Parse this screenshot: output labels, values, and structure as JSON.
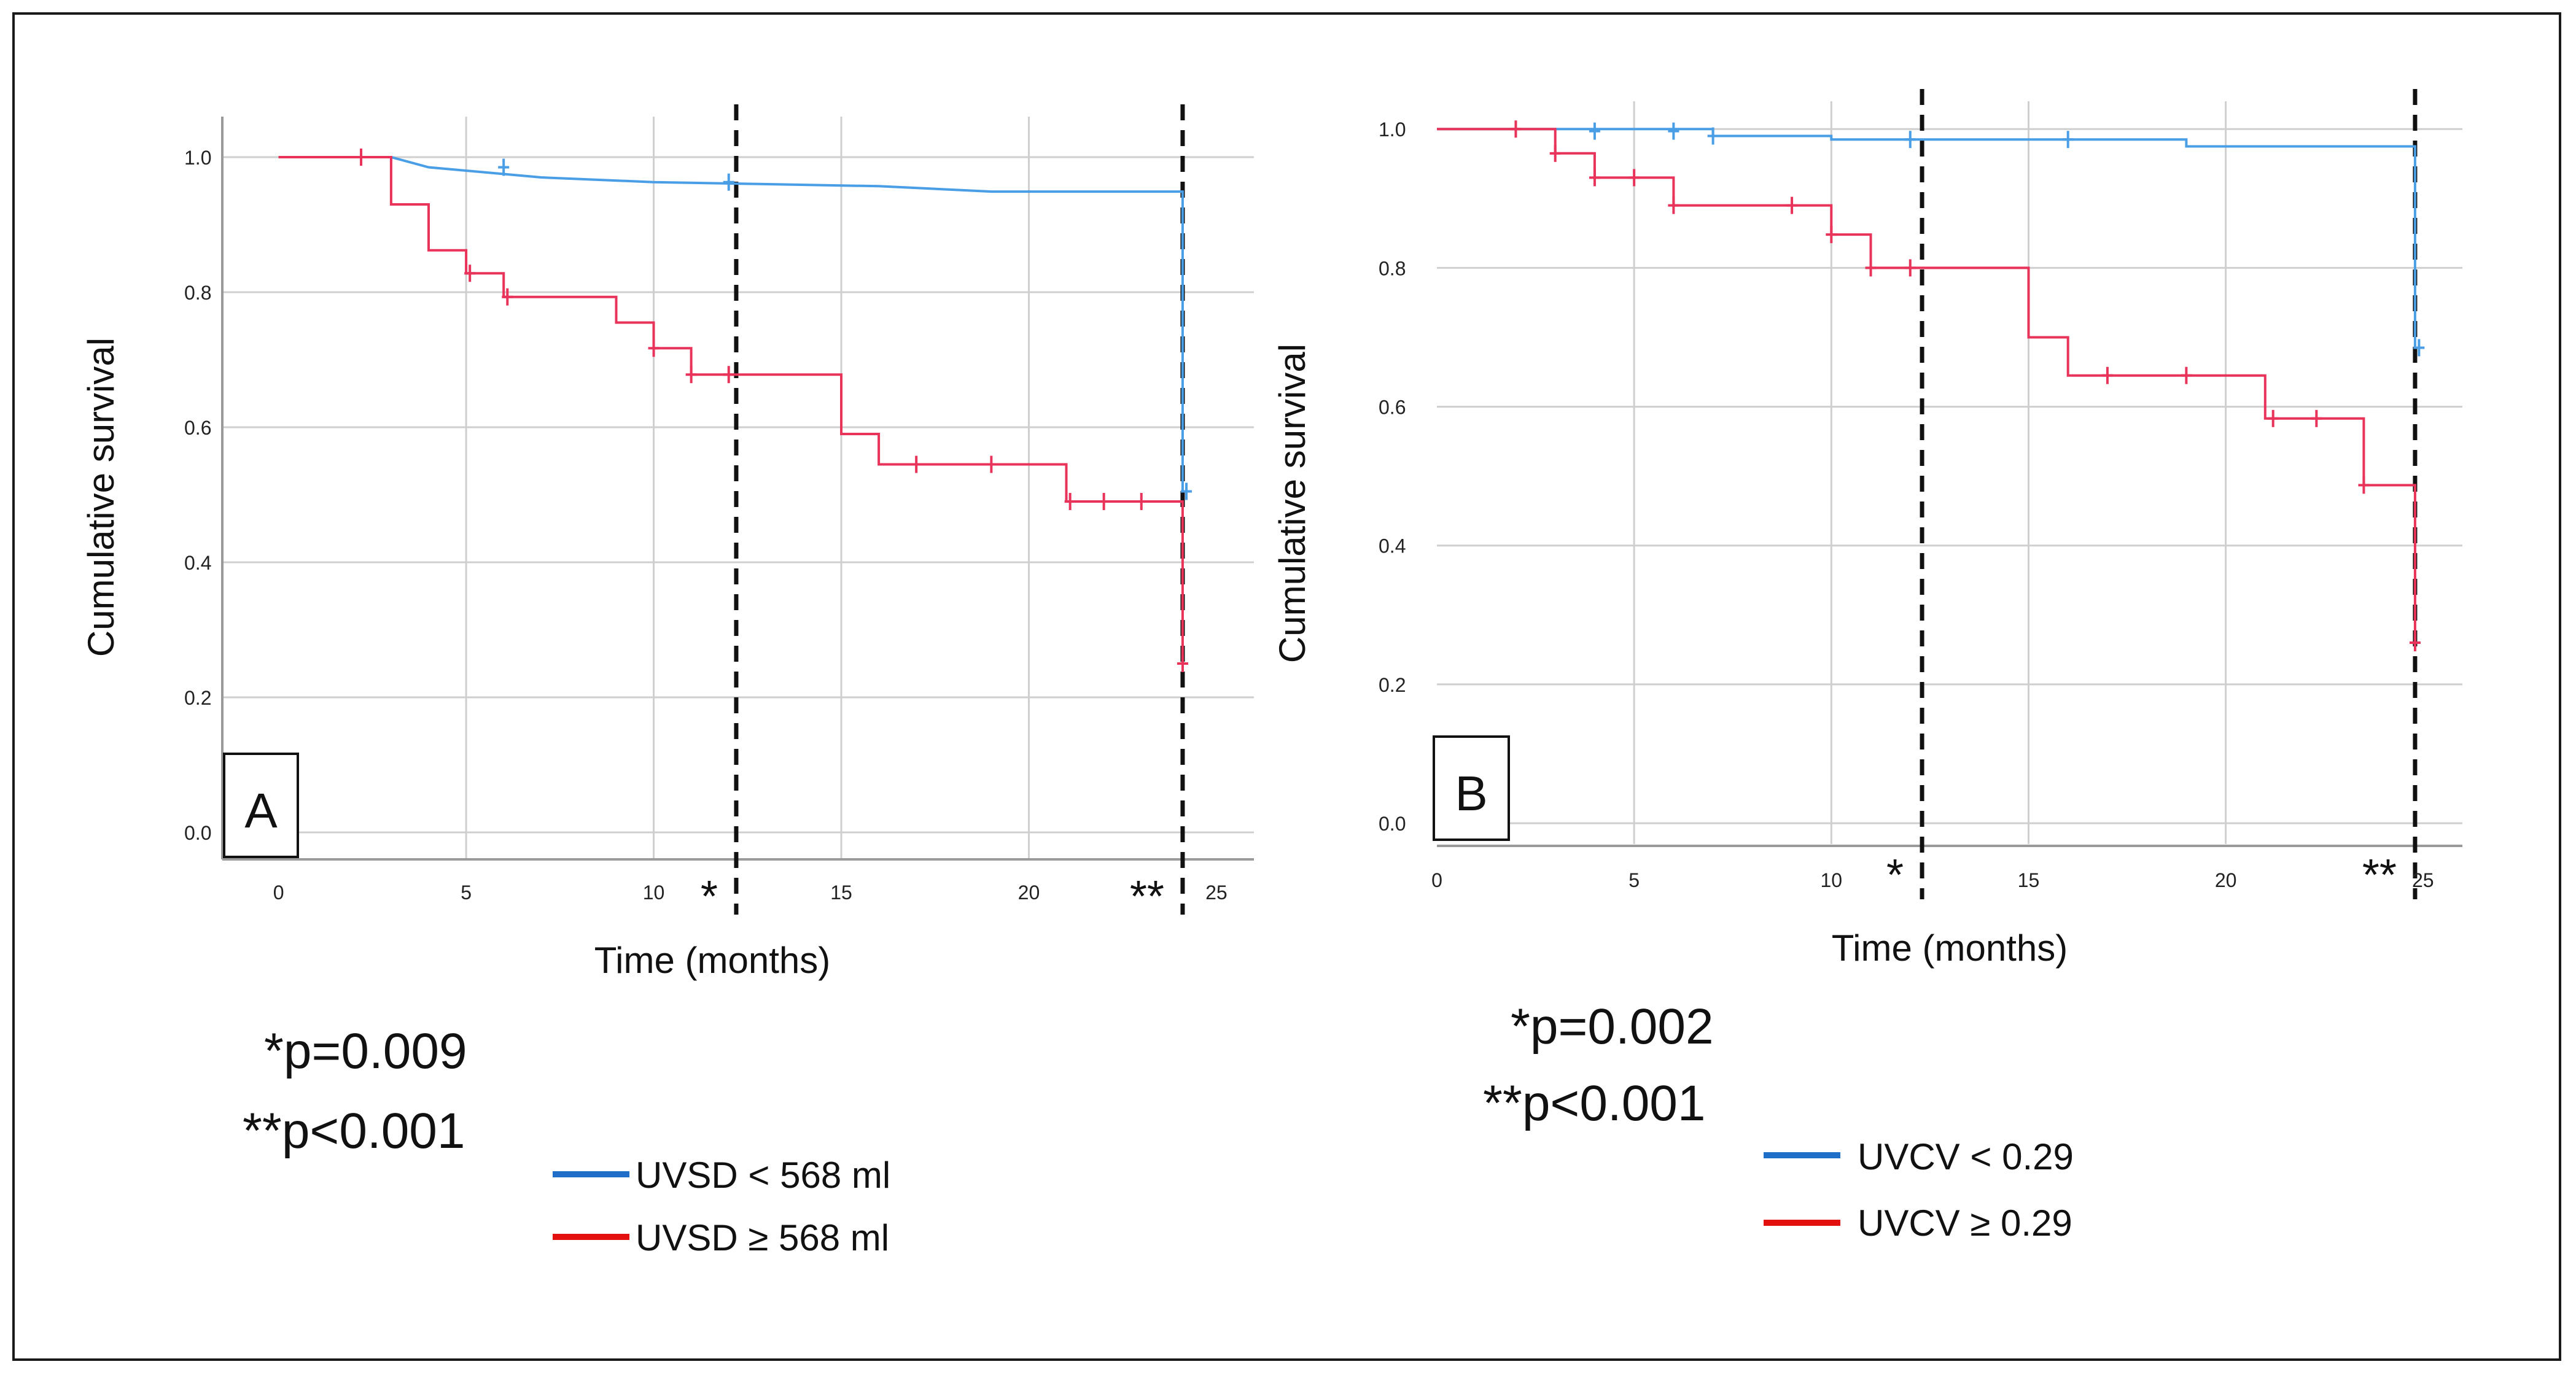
{
  "chart_data": [
    {
      "type": "line",
      "panel": "A",
      "title": "",
      "xlabel": "Time (months)",
      "ylabel": "Cumulative survival",
      "xlim": [
        -1.5,
        26
      ],
      "ylim": [
        -0.04,
        1.06
      ],
      "x_ticks": [
        "0",
        "5",
        "10",
        "15",
        "20",
        "25"
      ],
      "x_tick_values": [
        0,
        5,
        10,
        15,
        20,
        25
      ],
      "y_ticks": [
        "0.0",
        "0.2",
        "0.4",
        "0.6",
        "0.8",
        "1.0"
      ],
      "y_tick_values": [
        0,
        0.2,
        0.4,
        0.6,
        0.8,
        1.0
      ],
      "cutoffs": [
        {
          "x": 12.2,
          "label": "*"
        },
        {
          "x": 24.1,
          "label": "**"
        }
      ],
      "p_values": [
        "*p=0.009",
        "**p<0.001"
      ],
      "series": [
        {
          "name": "UVSD < 568 ml",
          "color": "#4a9ee6",
          "legend_color": "#1f6fc9",
          "steps": [
            [
              0,
              1.0
            ],
            [
              3,
              1.0
            ],
            [
              4,
              0.985
            ],
            [
              7,
              0.97
            ],
            [
              10,
              0.963
            ],
            [
              16,
              0.957
            ],
            [
              19,
              0.949
            ],
            [
              24.1,
              0.949
            ],
            [
              24.1,
              0.505
            ]
          ],
          "censored": [
            [
              6,
              0.985
            ],
            [
              12,
              0.963
            ],
            [
              24.2,
              0.505
            ]
          ]
        },
        {
          "name": "UVSD ≥ 568 ml",
          "color": "#e8335a",
          "legend_color": "#e31010",
          "steps": [
            [
              0,
              1.0
            ],
            [
              3,
              1.0
            ],
            [
              3,
              0.93
            ],
            [
              4,
              0.93
            ],
            [
              4,
              0.862
            ],
            [
              5,
              0.862
            ],
            [
              5,
              0.828
            ],
            [
              6,
              0.828
            ],
            [
              6,
              0.793
            ],
            [
              9,
              0.793
            ],
            [
              9,
              0.755
            ],
            [
              10,
              0.755
            ],
            [
              10,
              0.717
            ],
            [
              11,
              0.717
            ],
            [
              11,
              0.678
            ],
            [
              15,
              0.678
            ],
            [
              15,
              0.59
            ],
            [
              16,
              0.59
            ],
            [
              16,
              0.545
            ],
            [
              21,
              0.545
            ],
            [
              21,
              0.49
            ],
            [
              24.1,
              0.49
            ],
            [
              24.1,
              0.25
            ]
          ],
          "censored": [
            [
              2.2,
              1.0
            ],
            [
              5.1,
              0.828
            ],
            [
              6.1,
              0.793
            ],
            [
              10,
              0.717
            ],
            [
              11,
              0.678
            ],
            [
              12,
              0.678
            ],
            [
              17,
              0.545
            ],
            [
              19,
              0.545
            ],
            [
              21.1,
              0.49
            ],
            [
              22,
              0.49
            ],
            [
              23,
              0.49
            ],
            [
              24.1,
              0.25
            ]
          ]
        }
      ]
    },
    {
      "type": "line",
      "panel": "B",
      "title": "",
      "xlabel": "Time (months)",
      "ylabel": "Cumulative survival",
      "xlim": [
        0,
        26
      ],
      "ylim": [
        -0.03,
        1.04
      ],
      "x_ticks": [
        "0",
        "5",
        "10",
        "15",
        "20",
        "25"
      ],
      "x_tick_values": [
        0,
        5,
        10,
        15,
        20,
        25
      ],
      "y_ticks": [
        "0.0",
        "0.2",
        "0.4",
        "0.6",
        "0.8",
        "1.0"
      ],
      "y_tick_values": [
        0,
        0.2,
        0.4,
        0.6,
        0.8,
        1.0
      ],
      "cutoffs": [
        {
          "x": 12.3,
          "label": "*"
        },
        {
          "x": 24.8,
          "label": "**"
        }
      ],
      "p_values": [
        "*p=0.002",
        "**p<0.001"
      ],
      "series": [
        {
          "name": "UVCV < 0.29",
          "color": "#4a9ee6",
          "legend_color": "#1f6fc9",
          "steps": [
            [
              0,
              1.0
            ],
            [
              7,
              1.0
            ],
            [
              7,
              0.99
            ],
            [
              10,
              0.99
            ],
            [
              10,
              0.985
            ],
            [
              19,
              0.985
            ],
            [
              19,
              0.975
            ],
            [
              24.8,
              0.975
            ],
            [
              24.8,
              0.685
            ]
          ],
          "censored": [
            [
              4,
              0.997
            ],
            [
              6,
              0.997
            ],
            [
              7,
              0.99
            ],
            [
              12,
              0.985
            ],
            [
              16,
              0.985
            ],
            [
              24.9,
              0.685
            ]
          ]
        },
        {
          "name": "UVCV ≥ 0.29",
          "color": "#e8335a",
          "legend_color": "#e31010",
          "steps": [
            [
              0,
              1.0
            ],
            [
              3,
              1.0
            ],
            [
              3,
              0.965
            ],
            [
              4,
              0.965
            ],
            [
              4,
              0.93
            ],
            [
              6,
              0.93
            ],
            [
              6,
              0.89
            ],
            [
              10,
              0.89
            ],
            [
              10,
              0.848
            ],
            [
              11,
              0.848
            ],
            [
              11,
              0.8
            ],
            [
              15,
              0.8
            ],
            [
              15,
              0.7
            ],
            [
              16,
              0.7
            ],
            [
              16,
              0.645
            ],
            [
              21,
              0.645
            ],
            [
              21,
              0.583
            ],
            [
              23.5,
              0.583
            ],
            [
              23.5,
              0.487
            ],
            [
              24.8,
              0.487
            ],
            [
              24.8,
              0.26
            ]
          ],
          "censored": [
            [
              2,
              1.0
            ],
            [
              3,
              0.965
            ],
            [
              4,
              0.93
            ],
            [
              5,
              0.93
            ],
            [
              6,
              0.89
            ],
            [
              9,
              0.89
            ],
            [
              10,
              0.848
            ],
            [
              11,
              0.8
            ],
            [
              12,
              0.8
            ],
            [
              17,
              0.645
            ],
            [
              19,
              0.645
            ],
            [
              21.2,
              0.583
            ],
            [
              22.3,
              0.583
            ],
            [
              23.5,
              0.487
            ],
            [
              24.8,
              0.26
            ]
          ]
        }
      ]
    }
  ]
}
